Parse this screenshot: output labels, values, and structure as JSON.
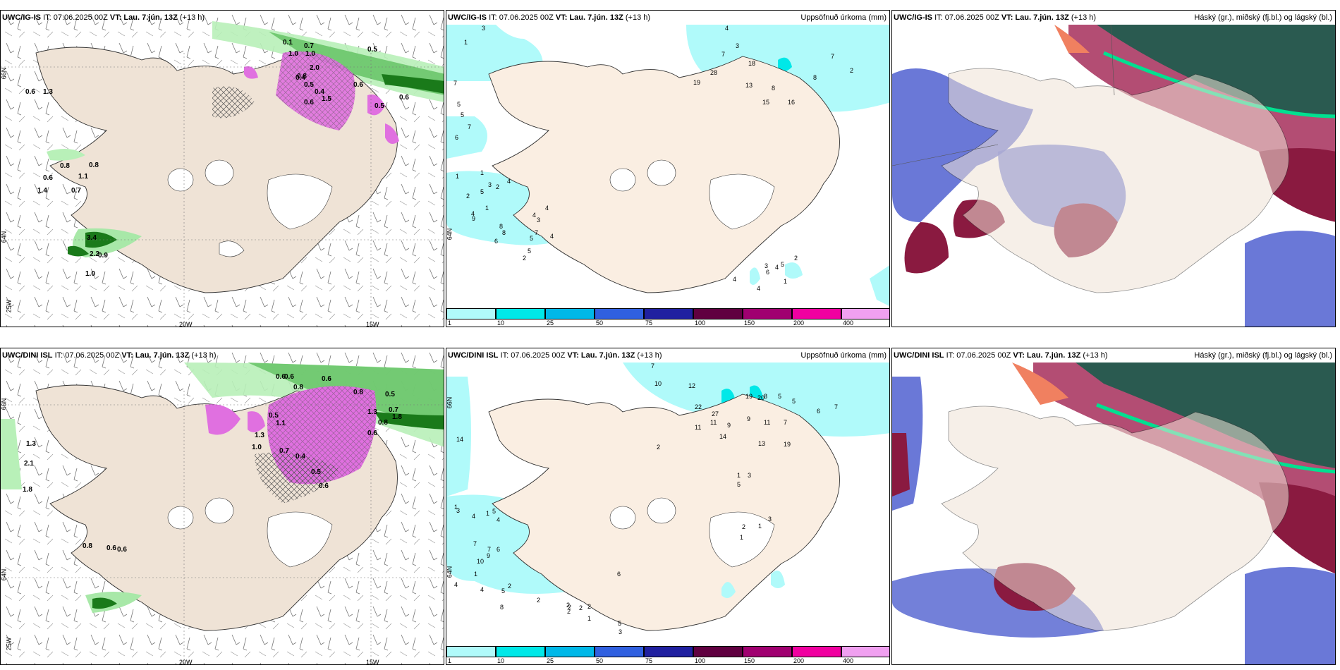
{
  "panels": {
    "p1": {
      "model": "UWC/IG-IS",
      "run": "IT: 07.06.2025 00Z",
      "vt_label": "VT:",
      "vt": "Lau. 7.jún. 13Z",
      "lead": "(+13 h)",
      "subtitle": ""
    },
    "p2": {
      "model": "UWC/IG-IS",
      "run": "IT: 07.06.2025 00Z",
      "vt_label": "VT:",
      "vt": "Lau. 7.jún. 13Z",
      "lead": "(+13 h)",
      "subtitle": "Uppsöfnuð úrkoma (mm)"
    },
    "p3": {
      "model": "UWC/IG-IS",
      "run": "IT: 07.06.2025 00Z",
      "vt_label": "VT:",
      "vt": "Lau. 7.jún. 13Z",
      "lead": "(+13 h)",
      "subtitle": "Háský (gr.), miðský (fj.bl.) og lágský (bl.)"
    },
    "p4": {
      "model": "UWC/DINI ISL",
      "run": "IT: 07.06.2025 00Z",
      "vt_label": "VT:",
      "vt": "Lau. 7.jún. 13Z",
      "lead": "(+13 h)",
      "subtitle": ""
    },
    "p5": {
      "model": "UWC/DINI ISL",
      "run": "IT: 07.06.2025 00Z",
      "vt_label": "VT:",
      "vt": "Lau. 7.jún. 13Z",
      "lead": "(+13 h)",
      "subtitle": "Uppsöfnuð úrkoma (mm)"
    },
    "p6": {
      "model": "UWC/DINI ISL",
      "run": "IT: 07.06.2025 00Z",
      "vt_label": "VT:",
      "vt": "Lau. 7.jún. 13Z",
      "lead": "(+13 h)",
      "subtitle": "Háský (gr.), miðský (fj.bl.) og lágský (bl.)"
    }
  },
  "axis_labels": {
    "lon_20w": "20W",
    "lon_15w": "15W",
    "lon_25w": "25W",
    "lat_66n": "66N",
    "lat_64n": "64N"
  },
  "colorbar": {
    "ticks": [
      "1",
      "10",
      "25",
      "50",
      "75",
      "100",
      "150",
      "200",
      "400"
    ],
    "colors": [
      "#b0fafa",
      "#00e8e8",
      "#00b8e8",
      "#3060e0",
      "#2020a0",
      "#600040",
      "#a00070",
      "#f000a0",
      "#f0a0f0"
    ]
  },
  "p1_values": [
    "0.1",
    "0.7",
    "1.0",
    "1.0",
    "0.5",
    "2.0",
    "0.4",
    "0.5",
    "0.4",
    "0.6",
    "0.8",
    "0.6",
    "0.5",
    "1.3",
    "0.6",
    "0.8",
    "0.8",
    "1.1",
    "1.4",
    "0.6",
    "1.5",
    "0.7",
    "3.4",
    "2.2",
    "0.9",
    "1.0",
    "0.6"
  ],
  "p2_values": [
    "3",
    "1",
    "4",
    "3",
    "7",
    "5",
    "5",
    "7",
    "6",
    "19",
    "28",
    "18",
    "13",
    "15",
    "16",
    "8",
    "7",
    "8",
    "7",
    "2",
    "1",
    "1",
    "2",
    "4",
    "3",
    "5",
    "2",
    "1",
    "4",
    "4",
    "4",
    "3",
    "7",
    "9",
    "8",
    "8",
    "6",
    "5",
    "2",
    "4",
    "5",
    "6",
    "2",
    "3",
    "4",
    "5",
    "1",
    "4",
    "4"
  ],
  "p4_values": [
    "0.6",
    "0.6",
    "0.8",
    "0.6",
    "0.8",
    "0.5",
    "1.3",
    "1.1",
    "0.7",
    "0.5",
    "1.3",
    "1.0",
    "0.7",
    "0.4",
    "0.5",
    "0.6",
    "1.8",
    "0.8",
    "0.6",
    "1.3",
    "2.1",
    "1.8",
    "0.8",
    "0.6",
    "0.6"
  ],
  "p5_values": [
    "7",
    "10",
    "12",
    "5",
    "5",
    "6",
    "7",
    "8",
    "22",
    "27",
    "19",
    "20",
    "11",
    "11",
    "14",
    "9",
    "9",
    "11",
    "7",
    "13",
    "19",
    "2",
    "1",
    "3",
    "14",
    "1",
    "1",
    "5",
    "3",
    "4",
    "4",
    "7",
    "7",
    "9",
    "6",
    "10",
    "1",
    "4",
    "4",
    "5",
    "2",
    "8",
    "2",
    "2",
    "2",
    "2",
    "2",
    "6",
    "3",
    "5",
    "2",
    "1",
    "2",
    "5",
    "1",
    "3",
    "1",
    "2"
  ]
}
